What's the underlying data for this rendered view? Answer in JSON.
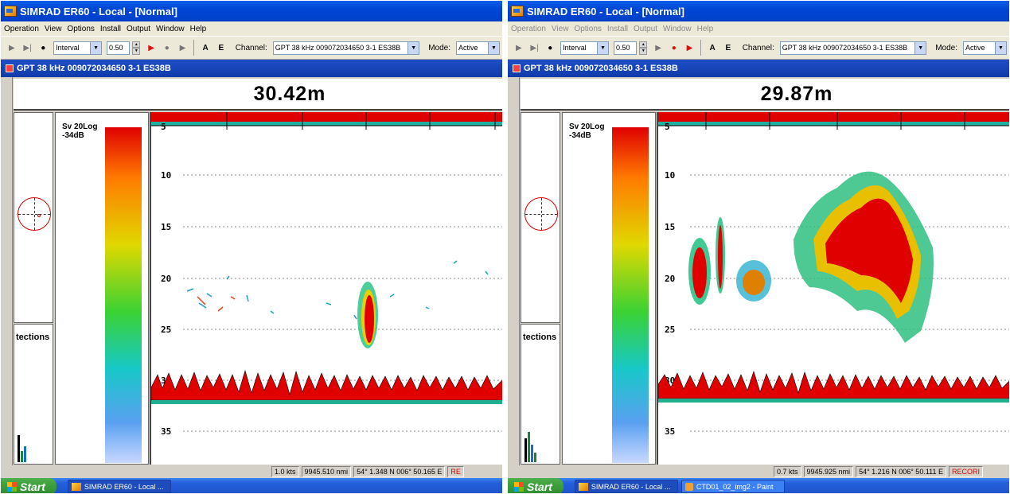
{
  "windows": [
    {
      "title": "SIMRAD ER60 - Local - [Normal]",
      "menu": [
        "Operation",
        "View",
        "Options",
        "Install",
        "Output",
        "Window",
        "Help"
      ],
      "toolbar": {
        "mode_select": "Interval",
        "interval_value": "0.50",
        "buttons": [
          "A",
          "E"
        ],
        "channel_label": "Channel:",
        "channel_value": "GPT  38 kHz 009072034650 3-1 ES38B",
        "mode_label": "Mode:",
        "mode_value": "Active"
      },
      "channel_title": "GPT  38 kHz 009072034650 3-1 ES38B",
      "depth_readout": "30.42m",
      "colour_scale": {
        "line1": "Sv 20Log",
        "line2": "-34dB"
      },
      "detections_label": "tections",
      "depth_ticks": [
        "5",
        "10",
        "15",
        "20",
        "25",
        "30",
        "35"
      ],
      "status": [
        "1.0 kts",
        "9945.510 nmi",
        "54° 1.348 N  006° 50.165 E",
        "RE"
      ],
      "taskbar": {
        "start": "Start",
        "tasks": [
          "SIMRAD ER60 - Local ..."
        ]
      }
    },
    {
      "title": "SIMRAD ER60 - Local - [Normal]",
      "menu": [
        "Operation",
        "View",
        "Options",
        "Install",
        "Output",
        "Window",
        "Help"
      ],
      "toolbar": {
        "mode_select": "Interval",
        "interval_value": "0.50",
        "buttons": [
          "A",
          "E"
        ],
        "channel_label": "Channel:",
        "channel_value": "GPT  38 kHz 009072034650 3-1 ES38B",
        "mode_label": "Mode:",
        "mode_value": "Active"
      },
      "channel_title": "GPT  38 kHz 009072034650 3-1 ES38B",
      "depth_readout": "29.87m",
      "colour_scale": {
        "line1": "Sv 20Log",
        "line2": "-34dB"
      },
      "detections_label": "tections",
      "depth_ticks": [
        "5",
        "10",
        "15",
        "20",
        "25",
        "30",
        "35"
      ],
      "status": [
        "0.7 kts",
        "9945.925 nmi",
        "54° 1.216 N  006° 50.111 E",
        "RECORI"
      ],
      "taskbar": {
        "start": "Start",
        "tasks": [
          "SIMRAD ER60 - Local ...",
          "CTD01_02_img2 - Paint"
        ]
      }
    }
  ],
  "colors": {
    "title_bar": "#0046d5",
    "scale_top": "#e00000",
    "bottom_echo": "#e00000",
    "compass": "#d00000"
  },
  "icons": [
    "app-icon",
    "play-icon",
    "step-icon",
    "record-icon",
    "spin-up-icon",
    "spin-down-icon",
    "compass-icon",
    "start-windows-icon"
  ]
}
